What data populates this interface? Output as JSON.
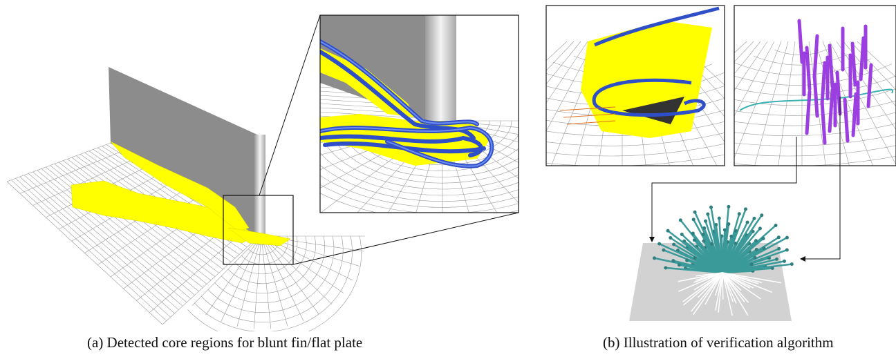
{
  "figure": {
    "subfigures": [
      {
        "caption": "(a) Detected core regions for blunt fin/flat plate"
      },
      {
        "caption": "(b) Illustration of verification algorithm"
      }
    ]
  }
}
